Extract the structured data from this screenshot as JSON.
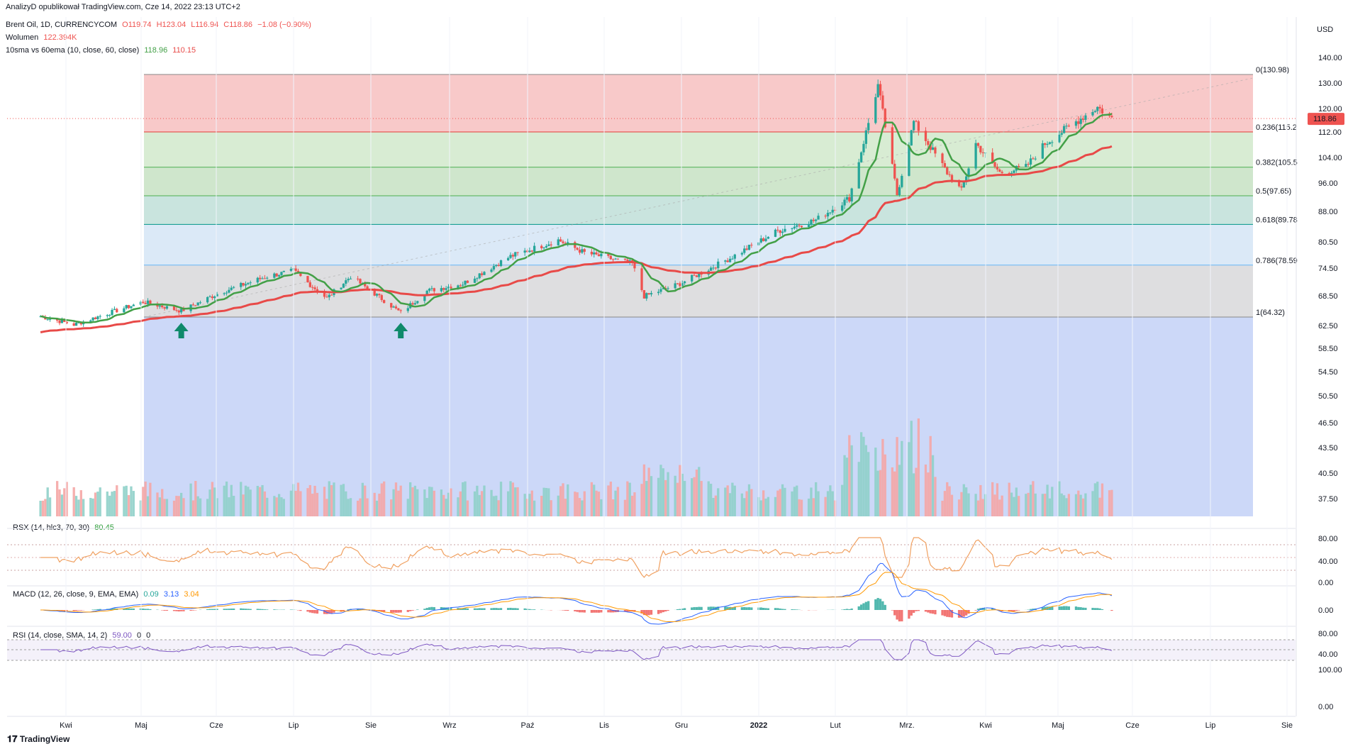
{
  "publisher": "AnalizyD opublikował TradingView.com, Cze 14, 2022 23:13 UTC+2",
  "currency": "USD",
  "footer_logo": "TradingView",
  "header": {
    "symbol": "Brent Oil, 1D, CURRENCYCOM",
    "ohlc": {
      "o": "O119.74",
      "h": "H123.04",
      "l": "L116.94",
      "c": "C118.86",
      "chg": "−1.08 (−0.90%)"
    },
    "volume_label": "Wolumen",
    "volume_value": "122.394K",
    "ma_label": "10sma vs 60ema (10, close, 60, close)",
    "ma_fast": "118.96",
    "ma_slow": "110.15"
  },
  "indicators": {
    "rsx": {
      "label": "RSX (14, hlc3, 70, 30)",
      "value": "80.45"
    },
    "macd": {
      "label": "MACD (12, 26, close, 9, EMA, EMA)",
      "v1": "0.09",
      "v2": "3.13",
      "v3": "3.04"
    },
    "rsi": {
      "label": "RSI (14, close, SMA, 14, 2)",
      "v1": "59.00",
      "v2": "0",
      "v3": "0"
    }
  },
  "colors": {
    "up": "#26a69a",
    "down": "#ef5350",
    "sma": "#43a047",
    "ema": "#e84a48",
    "rsx": "#f0a060",
    "rsx_hot": "#2e9e3a",
    "rsx_cold": "#e53935",
    "macd": "#2962ff",
    "signal": "#ff9800",
    "rsi": "#7e57c2"
  },
  "chart_data": {
    "type": "candlestick",
    "price_axis": {
      "ticks": [
        "140.00",
        "130.00",
        "120.00",
        "112.00",
        "104.00",
        "96.00",
        "88.00",
        "80.50",
        "74.50",
        "68.50",
        "62.50",
        "58.50",
        "54.50",
        "50.50",
        "46.50",
        "43.50",
        "40.50",
        "37.50"
      ],
      "last_price": "118.86"
    },
    "x_axis": {
      "labels": [
        "Kwi",
        "Maj",
        "Cze",
        "Lip",
        "Sie",
        "Wrz",
        "Paź",
        "Lis",
        "Gru",
        "2022",
        "Lut",
        "Mrz.",
        "Kwi",
        "Maj",
        "Cze",
        "Lip",
        "Sie"
      ]
    },
    "fibonacci": [
      {
        "level": "0",
        "price": 130.98,
        "label": "0(130.98)"
      },
      {
        "level": "0.236",
        "price": 115.2,
        "label": "0.236(115.2"
      },
      {
        "level": "0.382",
        "price": 105.5,
        "label": "0.382(105.5"
      },
      {
        "level": "0.5",
        "price": 97.65,
        "label": "0.5(97.65)"
      },
      {
        "level": "0.618",
        "price": 89.78,
        "label": "0.618(89.78"
      },
      {
        "level": "0.786",
        "price": 78.59,
        "label": "0.786(78.59"
      },
      {
        "level": "1",
        "price": 64.32,
        "label": "1(64.32)"
      }
    ],
    "price_anchors": [
      [
        "2021-03-22",
        64.5
      ],
      [
        "2021-04-05",
        62.2
      ],
      [
        "2021-04-20",
        65.5
      ],
      [
        "2021-05-04",
        68.5
      ],
      [
        "2021-05-20",
        66.0
      ],
      [
        "2021-06-05",
        71.0
      ],
      [
        "2021-06-25",
        75.5
      ],
      [
        "2021-07-06",
        77.0
      ],
      [
        "2021-07-20",
        69.5
      ],
      [
        "2021-07-30",
        75.5
      ],
      [
        "2021-08-20",
        65.5
      ],
      [
        "2021-08-31",
        71.5
      ],
      [
        "2021-09-15",
        73.5
      ],
      [
        "2021-10-05",
        81.0
      ],
      [
        "2021-10-25",
        85.5
      ],
      [
        "2021-11-05",
        82.0
      ],
      [
        "2021-11-25",
        79.0
      ],
      [
        "2021-11-30",
        70.0
      ],
      [
        "2021-12-15",
        73.5
      ],
      [
        "2022-01-05",
        80.5
      ],
      [
        "2022-01-25",
        88.0
      ],
      [
        "2022-02-10",
        91.0
      ],
      [
        "2022-02-24",
        97.0
      ],
      [
        "2022-03-08",
        128.0
      ],
      [
        "2022-03-16",
        98.0
      ],
      [
        "2022-03-23",
        118.0
      ],
      [
        "2022-04-06",
        104.0
      ],
      [
        "2022-04-12",
        99.0
      ],
      [
        "2022-04-18",
        112.0
      ],
      [
        "2022-04-28",
        104.0
      ],
      [
        "2022-05-09",
        105.5
      ],
      [
        "2022-05-17",
        112.0
      ],
      [
        "2022-05-30",
        118.0
      ],
      [
        "2022-06-08",
        122.0
      ],
      [
        "2022-06-14",
        118.86
      ]
    ],
    "sma10_last": 118.96,
    "ema60_last": 110.15,
    "annotations": [
      "arrow-up 2021-05-20",
      "arrow-up 2021-08-20"
    ]
  }
}
